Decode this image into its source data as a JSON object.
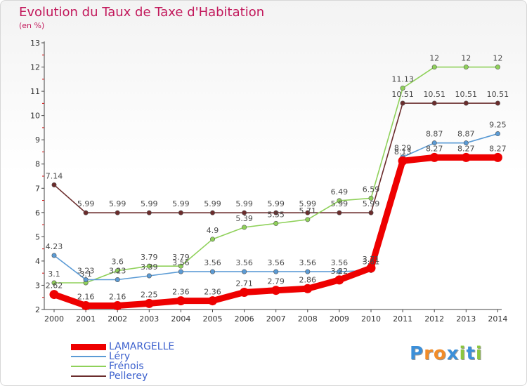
{
  "header": {
    "title": "Evolution du Taux de Taxe d'Habitation",
    "unit": "(en %)"
  },
  "chart_data": {
    "type": "line",
    "title": "Evolution du Taux de Taxe d'Habitation",
    "ylabel": "(en %)",
    "xlabel": "",
    "x": [
      "2000",
      "2001",
      "2002",
      "2003",
      "2004",
      "2005",
      "2006",
      "2007",
      "2008",
      "2009",
      "2010",
      "2011",
      "2012",
      "2013",
      "2014"
    ],
    "ylim": [
      2,
      13
    ],
    "yticks": [
      "2",
      "3",
      "4",
      "5",
      "6",
      "7",
      "8",
      "9",
      "10",
      "11",
      "12",
      "13"
    ],
    "grid": false,
    "legend_position": "bottom-left",
    "series": [
      {
        "name": "LAMARGELLE",
        "color": "#ee0000",
        "values": [
          2.62,
          2.16,
          2.16,
          2.25,
          2.36,
          2.36,
          2.71,
          2.79,
          2.86,
          3.22,
          3.71,
          8.13,
          8.27,
          8.27,
          8.27
        ],
        "labels": [
          "2.62",
          "2.16",
          "2.16",
          "2.25",
          "2.36",
          "2.36",
          "2.71",
          "2.79",
          "2.86",
          "3.22",
          "3.71",
          "8.13",
          "8.27",
          "8.27",
          "8.27"
        ]
      },
      {
        "name": "Léry",
        "color": "#5b9bd5",
        "values": [
          4.23,
          3.23,
          3.23,
          3.39,
          3.56,
          3.56,
          3.56,
          3.56,
          3.56,
          3.56,
          3.61,
          8.29,
          8.87,
          8.87,
          9.25
        ],
        "labels": [
          "4.23",
          "3.23",
          "3.23",
          "3.39",
          "3.56",
          "3.56",
          "3.56",
          "3.56",
          "3.56",
          "3.56",
          "3.61",
          "8.29",
          "8.87",
          "8.87",
          "9.25"
        ]
      },
      {
        "name": "Frénois",
        "color": "#8fd15a",
        "values": [
          3.1,
          3.1,
          3.6,
          3.79,
          3.79,
          4.9,
          5.39,
          5.55,
          5.71,
          6.49,
          6.59,
          11.13,
          12,
          12,
          12
        ],
        "labels": [
          "3.1",
          "3.1",
          "3.6",
          "3.79",
          "3.79",
          "4.9",
          "5.39",
          "5.55",
          "5.71",
          "6.49",
          "6.59",
          "11.13",
          "12",
          "12",
          "12"
        ]
      },
      {
        "name": "Pellerey",
        "color": "#6b2c2c",
        "values": [
          7.14,
          5.99,
          5.99,
          5.99,
          5.99,
          5.99,
          5.99,
          5.99,
          5.99,
          5.99,
          5.99,
          10.51,
          10.51,
          10.51,
          10.51
        ],
        "labels": [
          "7.14",
          "5.99",
          "5.99",
          "5.99",
          "5.99",
          "5.99",
          "5.99",
          "5.99",
          "5.99",
          "5.99",
          "5.99",
          "10.51",
          "10.51",
          "10.51",
          "10.51"
        ]
      }
    ]
  },
  "logo": {
    "text": "Proxiti",
    "letters": [
      "P",
      "r",
      "o",
      "x",
      "i",
      "t",
      "i"
    ],
    "colors": [
      "#3b8fd9",
      "#f28c28",
      "#f28c28",
      "#3b8fd9",
      "#8cc63f",
      "#3b8fd9",
      "#8cc63f"
    ]
  }
}
